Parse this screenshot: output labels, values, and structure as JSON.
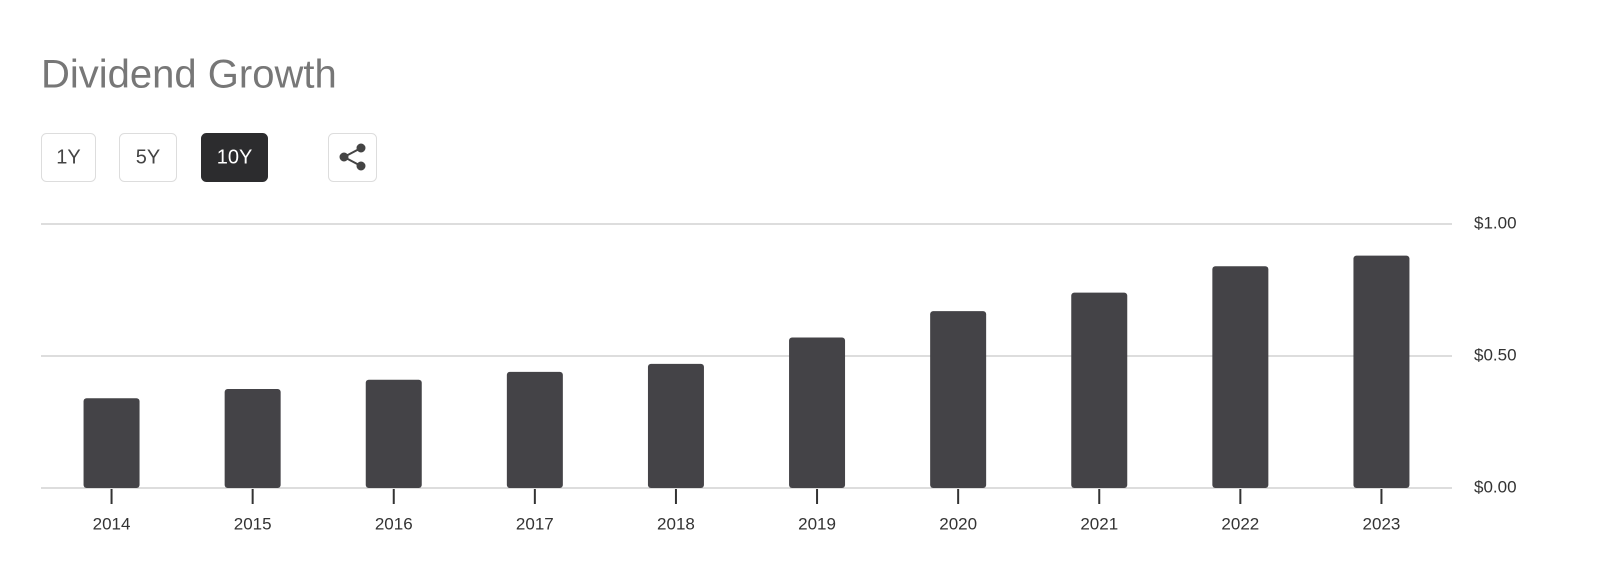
{
  "range_buttons": [
    {
      "label": "1Y",
      "active": false
    },
    {
      "label": "5Y",
      "active": false
    },
    {
      "label": "10Y",
      "active": true
    }
  ],
  "chart_data": {
    "type": "bar",
    "title": "Dividend Growth",
    "categories": [
      "2014",
      "2015",
      "2016",
      "2017",
      "2018",
      "2019",
      "2020",
      "2021",
      "2022",
      "2023"
    ],
    "values": [
      0.34,
      0.375,
      0.41,
      0.44,
      0.47,
      0.57,
      0.67,
      0.74,
      0.84,
      0.88
    ],
    "color": "#444347",
    "ylim": [
      0,
      1
    ],
    "yticks": [
      {
        "value": 0,
        "label": "$0.00"
      },
      {
        "value": 0.5,
        "label": "$0.50"
      },
      {
        "value": 1,
        "label": "$1.00"
      }
    ],
    "grid": true
  }
}
